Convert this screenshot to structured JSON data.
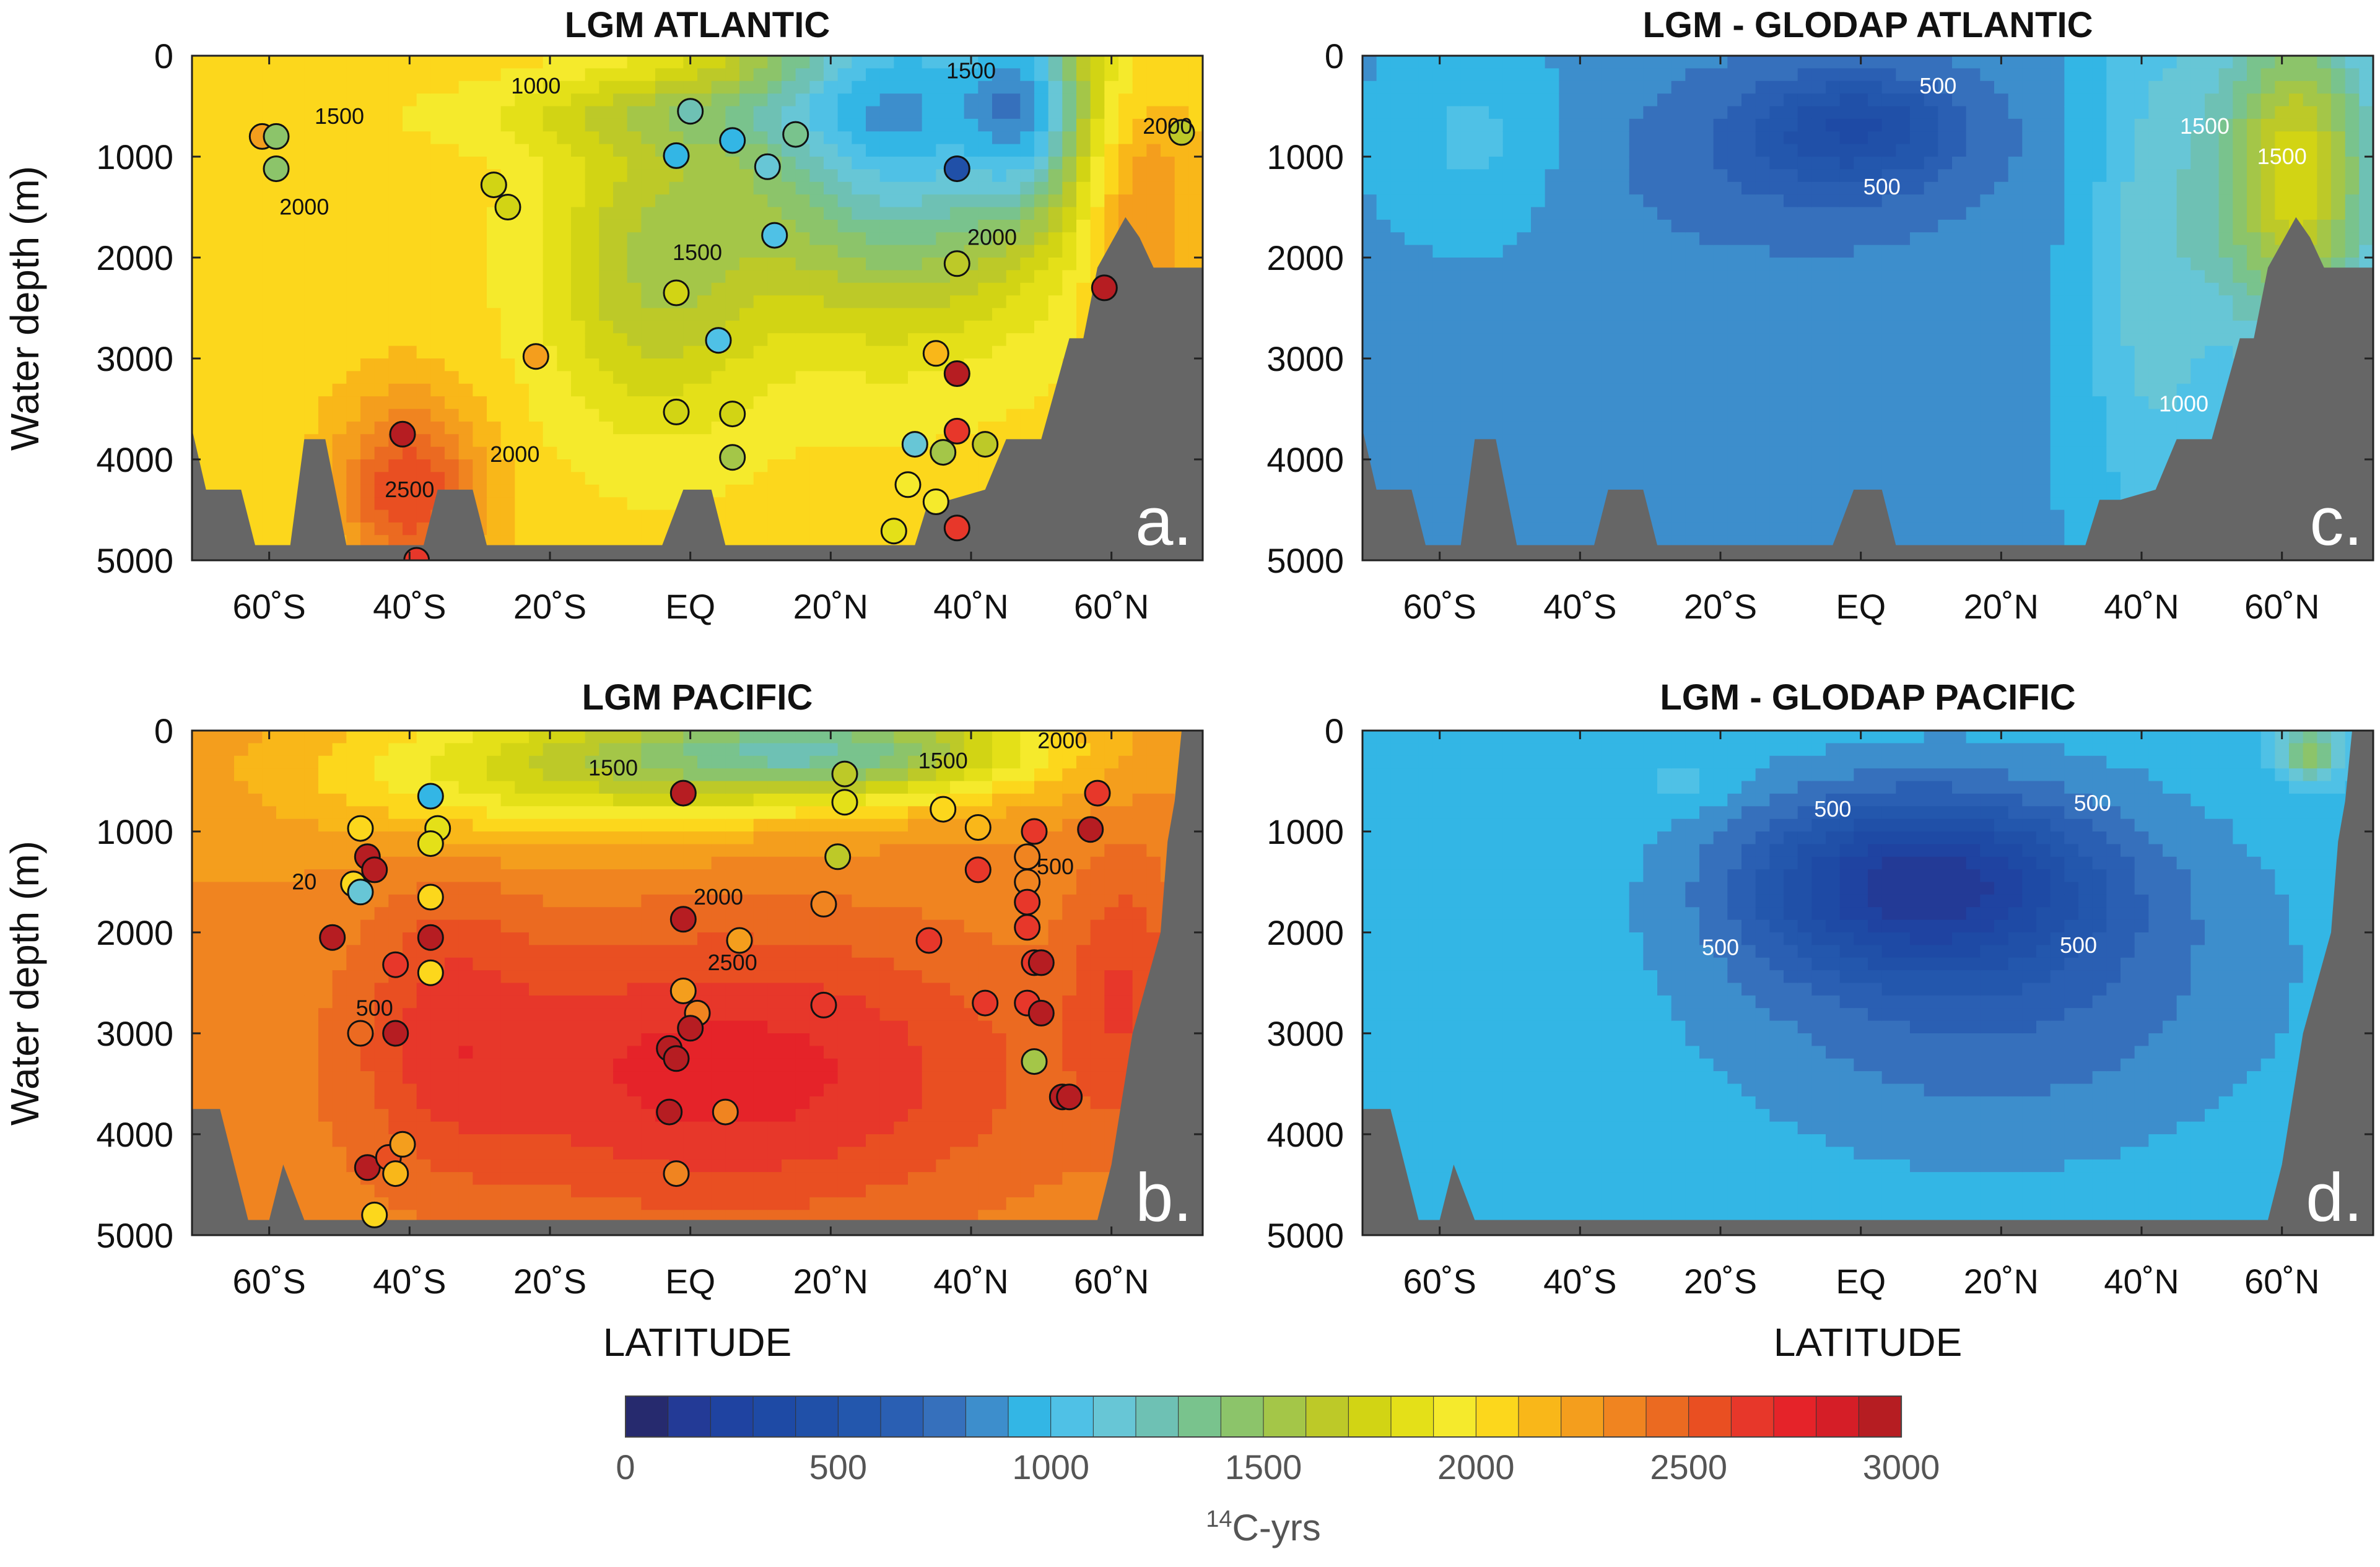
{
  "colormap": {
    "min": 0,
    "max": 3000,
    "step": 100,
    "colors": [
      "#262a6e",
      "#233a96",
      "#1f43a1",
      "#1e4aa5",
      "#2050a8",
      "#2357ad",
      "#2a5fb3",
      "#3670bc",
      "#3d8ecc",
      "#33b6e5",
      "#4fc1e6",
      "#67c6d6",
      "#6ec1b4",
      "#79c38d",
      "#8cc46a",
      "#a4c648",
      "#bdc928",
      "#d2d414",
      "#e4e018",
      "#f5ea2c",
      "#fcd71c",
      "#f9b719",
      "#f49e1d",
      "#f08420",
      "#eb6a21",
      "#e94f22",
      "#e7372a",
      "#e52329",
      "#d51e27",
      "#b61d22"
    ]
  },
  "colorbar": {
    "ticks": [
      0,
      500,
      1000,
      1500,
      2000,
      2500,
      3000
    ],
    "label_sup": "14",
    "label": "C-yrs"
  },
  "x_ticks": [
    "60˚S",
    "40˚S",
    "20˚S",
    "EQ",
    "20˚N",
    "40˚N",
    "60˚N"
  ],
  "y_ticks": [
    "0",
    "1000",
    "2000",
    "3000",
    "4000",
    "5000"
  ],
  "y_axis_label": "Water depth (m)",
  "x_axis_label": "LATITUDE",
  "chart_data": [
    {
      "type": "heatmap",
      "panel": "a.",
      "title": "LGM ATLANTIC",
      "xlabel": "",
      "ylabel": "Water depth (m)",
      "xlim": [
        -71,
        73
      ],
      "ylim": [
        5000,
        0
      ],
      "field": {
        "base": 2050,
        "bumps": [
          [
            30,
            500,
            22,
            1900,
            -1100
          ],
          [
            -5,
            2100,
            16,
            1600,
            -450
          ],
          [
            -3,
            600,
            30,
            350,
            -250
          ],
          [
            64,
            1500,
            8,
            1200,
            300
          ],
          [
            -40,
            4300,
            10,
            900,
            550
          ],
          [
            48,
            500,
            8,
            1000,
            -650
          ]
        ]
      },
      "contour_labels": [
        {
          "x": -22,
          "y": 300,
          "v": "1000"
        },
        {
          "x": 40,
          "y": 150,
          "v": "1500"
        },
        {
          "x": -50,
          "y": 600,
          "v": "1500"
        },
        {
          "x": 68,
          "y": 700,
          "v": "2000"
        },
        {
          "x": -55,
          "y": 1500,
          "v": "2000"
        },
        {
          "x": 1,
          "y": 1950,
          "v": "1500"
        },
        {
          "x": 43,
          "y": 1800,
          "v": "2000"
        },
        {
          "x": -25,
          "y": 3950,
          "v": "2000"
        },
        {
          "x": -40,
          "y": 4300,
          "v": "2500"
        }
      ],
      "bathymetry": [
        [
          -71,
          3700
        ],
        [
          -69,
          4300
        ],
        [
          -64,
          4300
        ],
        [
          -62,
          4850
        ],
        [
          -57,
          4850
        ],
        [
          -55,
          3800
        ],
        [
          -52,
          3800
        ],
        [
          -49,
          4850
        ],
        [
          -38,
          4850
        ],
        [
          -36,
          4300
        ],
        [
          -31,
          4300
        ],
        [
          -29,
          4850
        ],
        [
          -4,
          4850
        ],
        [
          -1,
          4300
        ],
        [
          3,
          4300
        ],
        [
          5,
          4850
        ],
        [
          32,
          4850
        ],
        [
          34,
          4400
        ],
        [
          37,
          4400
        ],
        [
          42,
          4300
        ],
        [
          45,
          3800
        ],
        [
          50,
          3800
        ],
        [
          54,
          2800
        ],
        [
          56,
          2800
        ],
        [
          58,
          2100
        ],
        [
          62,
          1600
        ],
        [
          64,
          1800
        ],
        [
          66,
          2100
        ],
        [
          73,
          2100
        ]
      ],
      "points": [
        {
          "x": -61,
          "y": 800,
          "v": 2250
        },
        {
          "x": -59,
          "y": 800,
          "v": 1450
        },
        {
          "x": -59,
          "y": 1120,
          "v": 1400
        },
        {
          "x": -41,
          "y": 3750,
          "v": 2950
        },
        {
          "x": -39,
          "y": 5000,
          "v": 2600
        },
        {
          "x": -28,
          "y": 1280,
          "v": 1700
        },
        {
          "x": -26,
          "y": 1500,
          "v": 1750
        },
        {
          "x": -22,
          "y": 2980,
          "v": 2200
        },
        {
          "x": 0,
          "y": 550,
          "v": 1200
        },
        {
          "x": -2,
          "y": 990,
          "v": 900
        },
        {
          "x": 6,
          "y": 840,
          "v": 900
        },
        {
          "x": 11,
          "y": 1100,
          "v": 1100
        },
        {
          "x": 15,
          "y": 780,
          "v": 1300
        },
        {
          "x": 12,
          "y": 1780,
          "v": 1000
        },
        {
          "x": -2,
          "y": 2350,
          "v": 1700
        },
        {
          "x": 4,
          "y": 2820,
          "v": 1000
        },
        {
          "x": -2,
          "y": 3530,
          "v": 1750
        },
        {
          "x": 6,
          "y": 3550,
          "v": 1750
        },
        {
          "x": 6,
          "y": 3980,
          "v": 1550
        },
        {
          "x": 38,
          "y": 1120,
          "v": 400
        },
        {
          "x": 38,
          "y": 2060,
          "v": 1600
        },
        {
          "x": 35,
          "y": 2950,
          "v": 2100
        },
        {
          "x": 38,
          "y": 3150,
          "v": 2950
        },
        {
          "x": 32,
          "y": 3850,
          "v": 1100
        },
        {
          "x": 36,
          "y": 3930,
          "v": 1550
        },
        {
          "x": 42,
          "y": 3850,
          "v": 1600
        },
        {
          "x": 31,
          "y": 4250,
          "v": 1950
        },
        {
          "x": 38,
          "y": 3720,
          "v": 2650
        },
        {
          "x": 35,
          "y": 4420,
          "v": 1900
        },
        {
          "x": 29,
          "y": 4710,
          "v": 1850
        },
        {
          "x": 38,
          "y": 4680,
          "v": 2600
        },
        {
          "x": 59,
          "y": 2300,
          "v": 2950
        },
        {
          "x": 70,
          "y": 760,
          "v": 1650
        }
      ]
    },
    {
      "type": "heatmap",
      "panel": "b.",
      "title": "LGM PACIFIC",
      "xlabel": "LATITUDE",
      "ylabel": "Water depth (m)",
      "xlim": [
        -71,
        73
      ],
      "ylim": [
        5000,
        0
      ],
      "field": {
        "base": 2300,
        "bumps": [
          [
            5,
            3400,
            45,
            1500,
            450
          ],
          [
            20,
            200,
            30,
            500,
            -900
          ],
          [
            -20,
            400,
            35,
            700,
            -500
          ],
          [
            -35,
            2800,
            12,
            1500,
            200
          ],
          [
            62,
            2500,
            8,
            1400,
            250
          ]
        ]
      },
      "contour_labels": [
        {
          "x": -11,
          "y": 370,
          "v": "1500"
        },
        {
          "x": 36,
          "y": 300,
          "v": "1500"
        },
        {
          "x": 53,
          "y": 100,
          "v": "2000"
        },
        {
          "x": 4,
          "y": 1650,
          "v": "2000"
        },
        {
          "x": -55,
          "y": 1500,
          "v": "20"
        },
        {
          "x": 52,
          "y": 1350,
          "v": "500"
        },
        {
          "x": 6,
          "y": 2300,
          "v": "2500"
        },
        {
          "x": -45,
          "y": 2750,
          "v": "500"
        }
      ],
      "bathymetry": [
        [
          -71,
          3750
        ],
        [
          -67,
          3750
        ],
        [
          -63,
          4850
        ],
        [
          -60,
          4850
        ],
        [
          -58,
          4300
        ],
        [
          -55,
          4850
        ],
        [
          58,
          4850
        ],
        [
          60,
          4300
        ],
        [
          63,
          3000
        ],
        [
          67,
          2000
        ],
        [
          68,
          1100
        ],
        [
          69,
          700
        ],
        [
          70,
          0
        ],
        [
          73,
          0
        ]
      ],
      "points": [
        {
          "x": -37,
          "y": 650,
          "v": 900
        },
        {
          "x": -36,
          "y": 970,
          "v": 1800
        },
        {
          "x": -37,
          "y": 1120,
          "v": 1800
        },
        {
          "x": -47,
          "y": 970,
          "v": 2000
        },
        {
          "x": -46,
          "y": 1250,
          "v": 2950
        },
        {
          "x": -45,
          "y": 1380,
          "v": 2950
        },
        {
          "x": -48,
          "y": 1520,
          "v": 2050
        },
        {
          "x": -47,
          "y": 1600,
          "v": 1100
        },
        {
          "x": -37,
          "y": 1650,
          "v": 2050
        },
        {
          "x": -51,
          "y": 2050,
          "v": 2950
        },
        {
          "x": -37,
          "y": 2050,
          "v": 2950
        },
        {
          "x": -42,
          "y": 2320,
          "v": 2650
        },
        {
          "x": -37,
          "y": 2400,
          "v": 2050
        },
        {
          "x": -47,
          "y": 3000,
          "v": 2450
        },
        {
          "x": -42,
          "y": 3000,
          "v": 2950
        },
        {
          "x": -46,
          "y": 4330,
          "v": 2950
        },
        {
          "x": -43,
          "y": 4230,
          "v": 2550
        },
        {
          "x": -41,
          "y": 4100,
          "v": 2200
        },
        {
          "x": -42,
          "y": 4390,
          "v": 2100
        },
        {
          "x": -45,
          "y": 4800,
          "v": 2000
        },
        {
          "x": -1,
          "y": 620,
          "v": 2950
        },
        {
          "x": -1,
          "y": 1870,
          "v": 2950
        },
        {
          "x": 7,
          "y": 2080,
          "v": 2200
        },
        {
          "x": -1,
          "y": 2580,
          "v": 2200
        },
        {
          "x": 1,
          "y": 2800,
          "v": 2300
        },
        {
          "x": 0,
          "y": 2950,
          "v": 2950
        },
        {
          "x": -3,
          "y": 3150,
          "v": 2950
        },
        {
          "x": -2,
          "y": 3250,
          "v": 2950
        },
        {
          "x": -3,
          "y": 3780,
          "v": 2950
        },
        {
          "x": 5,
          "y": 3780,
          "v": 2300
        },
        {
          "x": -2,
          "y": 4390,
          "v": 2300
        },
        {
          "x": 22,
          "y": 430,
          "v": 1650
        },
        {
          "x": 22,
          "y": 710,
          "v": 1800
        },
        {
          "x": 21,
          "y": 1250,
          "v": 1600
        },
        {
          "x": 19,
          "y": 1720,
          "v": 2300
        },
        {
          "x": 19,
          "y": 2720,
          "v": 2600
        },
        {
          "x": 36,
          "y": 780,
          "v": 2050
        },
        {
          "x": 34,
          "y": 2080,
          "v": 2600
        },
        {
          "x": 41,
          "y": 960,
          "v": 2100
        },
        {
          "x": 41,
          "y": 1380,
          "v": 2600
        },
        {
          "x": 42,
          "y": 2700,
          "v": 2600
        },
        {
          "x": 49,
          "y": 1000,
          "v": 2600
        },
        {
          "x": 48,
          "y": 1250,
          "v": 2300
        },
        {
          "x": 48,
          "y": 1500,
          "v": 2300
        },
        {
          "x": 48,
          "y": 1700,
          "v": 2600
        },
        {
          "x": 48,
          "y": 1950,
          "v": 2600
        },
        {
          "x": 49,
          "y": 2300,
          "v": 2600
        },
        {
          "x": 50,
          "y": 2300,
          "v": 2950
        },
        {
          "x": 48,
          "y": 2700,
          "v": 2600
        },
        {
          "x": 50,
          "y": 2800,
          "v": 2950
        },
        {
          "x": 49,
          "y": 3280,
          "v": 1500
        },
        {
          "x": 53,
          "y": 3630,
          "v": 2950
        },
        {
          "x": 54,
          "y": 3630,
          "v": 2950
        },
        {
          "x": 58,
          "y": 620,
          "v": 2600
        },
        {
          "x": 57,
          "y": 980,
          "v": 2950
        }
      ]
    },
    {
      "type": "heatmap",
      "panel": "c.",
      "title": "LGM - GLODAP ATLANTIC",
      "xlabel": "",
      "ylabel": "",
      "xlim": [
        -71,
        73
      ],
      "ylim": [
        5000,
        0
      ],
      "field": {
        "base": 880,
        "bumps": [
          [
            0,
            700,
            14,
            500,
            -330
          ],
          [
            -8,
            1000,
            28,
            1000,
            -200
          ],
          [
            62,
            1200,
            11,
            1600,
            900
          ],
          [
            42,
            2000,
            10,
            3000,
            280
          ],
          [
            -55,
            800,
            12,
            900,
            150
          ]
        ]
      },
      "contour_labels": [
        {
          "x": 11,
          "y": 300,
          "v": "500"
        },
        {
          "x": 3,
          "y": 1300,
          "v": "500"
        },
        {
          "x": 49,
          "y": 700,
          "v": "1500"
        },
        {
          "x": 60,
          "y": 1000,
          "v": "1500"
        },
        {
          "x": 46,
          "y": 3450,
          "v": "1000"
        }
      ],
      "bathymetry": [
        [
          -71,
          3700
        ],
        [
          -69,
          4300
        ],
        [
          -64,
          4300
        ],
        [
          -62,
          4850
        ],
        [
          -57,
          4850
        ],
        [
          -55,
          3800
        ],
        [
          -52,
          3800
        ],
        [
          -49,
          4850
        ],
        [
          -38,
          4850
        ],
        [
          -36,
          4300
        ],
        [
          -31,
          4300
        ],
        [
          -29,
          4850
        ],
        [
          -4,
          4850
        ],
        [
          -1,
          4300
        ],
        [
          3,
          4300
        ],
        [
          5,
          4850
        ],
        [
          32,
          4850
        ],
        [
          34,
          4400
        ],
        [
          37,
          4400
        ],
        [
          42,
          4300
        ],
        [
          45,
          3800
        ],
        [
          50,
          3800
        ],
        [
          54,
          2800
        ],
        [
          56,
          2800
        ],
        [
          58,
          2100
        ],
        [
          62,
          1600
        ],
        [
          64,
          1800
        ],
        [
          66,
          2100
        ],
        [
          73,
          2100
        ]
      ],
      "points": []
    },
    {
      "type": "heatmap",
      "panel": "d.",
      "title": "LGM - GLODAP PACIFIC",
      "xlabel": "LATITUDE",
      "ylabel": "",
      "xlim": [
        -71,
        73
      ],
      "ylim": [
        5000,
        0
      ],
      "field": {
        "base": 990,
        "bumps": [
          [
            8,
            1500,
            24,
            850,
            -660
          ],
          [
            18,
            2400,
            40,
            1800,
            -300
          ],
          [
            -25,
            550,
            6,
            200,
            90
          ],
          [
            64,
            200,
            4,
            300,
            500
          ]
        ]
      },
      "contour_labels": [
        {
          "x": -4,
          "y": 780,
          "v": "500"
        },
        {
          "x": 33,
          "y": 720,
          "v": "500"
        },
        {
          "x": -20,
          "y": 2150,
          "v": "500"
        },
        {
          "x": 31,
          "y": 2130,
          "v": "500"
        }
      ],
      "bathymetry": [
        [
          -71,
          3750
        ],
        [
          -67,
          3750
        ],
        [
          -63,
          4850
        ],
        [
          -60,
          4850
        ],
        [
          -58,
          4300
        ],
        [
          -55,
          4850
        ],
        [
          58,
          4850
        ],
        [
          60,
          4300
        ],
        [
          63,
          3000
        ],
        [
          67,
          2000
        ],
        [
          68,
          1100
        ],
        [
          69,
          700
        ],
        [
          70,
          0
        ],
        [
          73,
          0
        ]
      ],
      "points": []
    }
  ]
}
